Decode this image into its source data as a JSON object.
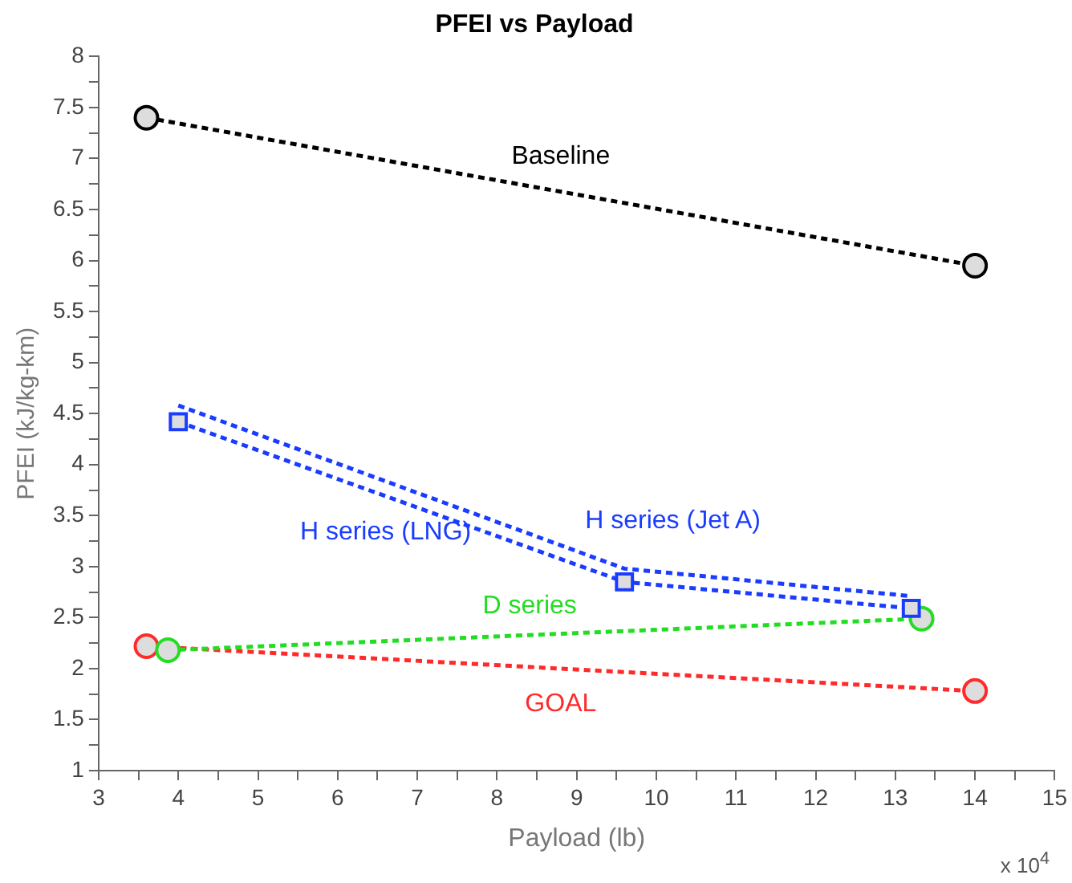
{
  "chart_data": {
    "type": "line",
    "title": "PFEI vs Payload",
    "xlabel": "Payload (lb)",
    "ylabel": "PFEI (kJ/kg-km)",
    "annotations": [
      "x 10$^{4}$"
    ],
    "series": [
      {
        "name": "Baseline",
        "color": "#000000",
        "marker": "circle",
        "x": [
          3.6,
          14.0
        ],
        "values": [
          7.4,
          5.95
        ]
      },
      {
        "name": "H series (Jet A)",
        "color": "#1a3cff",
        "marker": "none",
        "x": [
          4.0,
          9.6,
          13.2
        ],
        "values": [
          4.58,
          2.98,
          2.71
        ]
      },
      {
        "name": "H series (LNG)",
        "color": "#1a3cff",
        "marker": "square",
        "x": [
          4.0,
          9.6,
          13.2
        ],
        "values": [
          4.42,
          2.85,
          2.59
        ]
      },
      {
        "name": "D series",
        "color": "#22dd22",
        "marker": "circle",
        "x": [
          3.87,
          13.33
        ],
        "values": [
          2.18,
          2.49
        ]
      },
      {
        "name": "GOAL",
        "color": "#ff2a2a",
        "marker": "circle",
        "x": [
          3.6,
          14.0
        ],
        "values": [
          2.22,
          1.78
        ]
      }
    ],
    "line_style": "dashed",
    "grid": false,
    "legend": false,
    "xlim": [
      3,
      15
    ],
    "ylim": [
      1,
      8
    ],
    "xticks": [
      3,
      {
        "value": 3.5,
        "label": null
      },
      4,
      {
        "value": 4.5,
        "label": null
      },
      5,
      {
        "value": 5.5,
        "label": null
      },
      6,
      {
        "value": 6.5,
        "label": null
      },
      7,
      {
        "value": 7.5,
        "label": null
      },
      8,
      {
        "value": 8.5,
        "label": null
      },
      9,
      {
        "value": 9.5,
        "label": null
      },
      10,
      {
        "value": 10.5,
        "label": null
      },
      11,
      {
        "value": 11.5,
        "label": null
      },
      12,
      {
        "value": 12.5,
        "label": null
      },
      13,
      {
        "value": 13.5,
        "label": null
      },
      14,
      {
        "value": 14.5,
        "label": null
      },
      15
    ],
    "yticks": [
      1,
      {
        "value": 1.25,
        "label": null
      },
      1.5,
      {
        "value": 1.75,
        "label": null
      },
      2,
      {
        "value": 2.25,
        "label": null
      },
      2.5,
      {
        "value": 2.75,
        "label": null
      },
      3,
      {
        "value": 3.25,
        "label": null
      },
      3.5,
      {
        "value": 3.75,
        "label": null
      },
      4,
      {
        "value": 4.25,
        "label": null
      },
      4.5,
      {
        "value": 4.75,
        "label": null
      },
      5,
      {
        "value": 5.25,
        "label": null
      },
      5.5,
      {
        "value": 5.75,
        "label": null
      },
      6,
      {
        "value": 6.25,
        "label": null
      },
      6.5,
      {
        "value": 6.75,
        "label": null
      },
      7,
      {
        "value": 7.25,
        "label": null
      },
      7.5,
      {
        "value": 7.75,
        "label": null
      },
      8
    ]
  }
}
